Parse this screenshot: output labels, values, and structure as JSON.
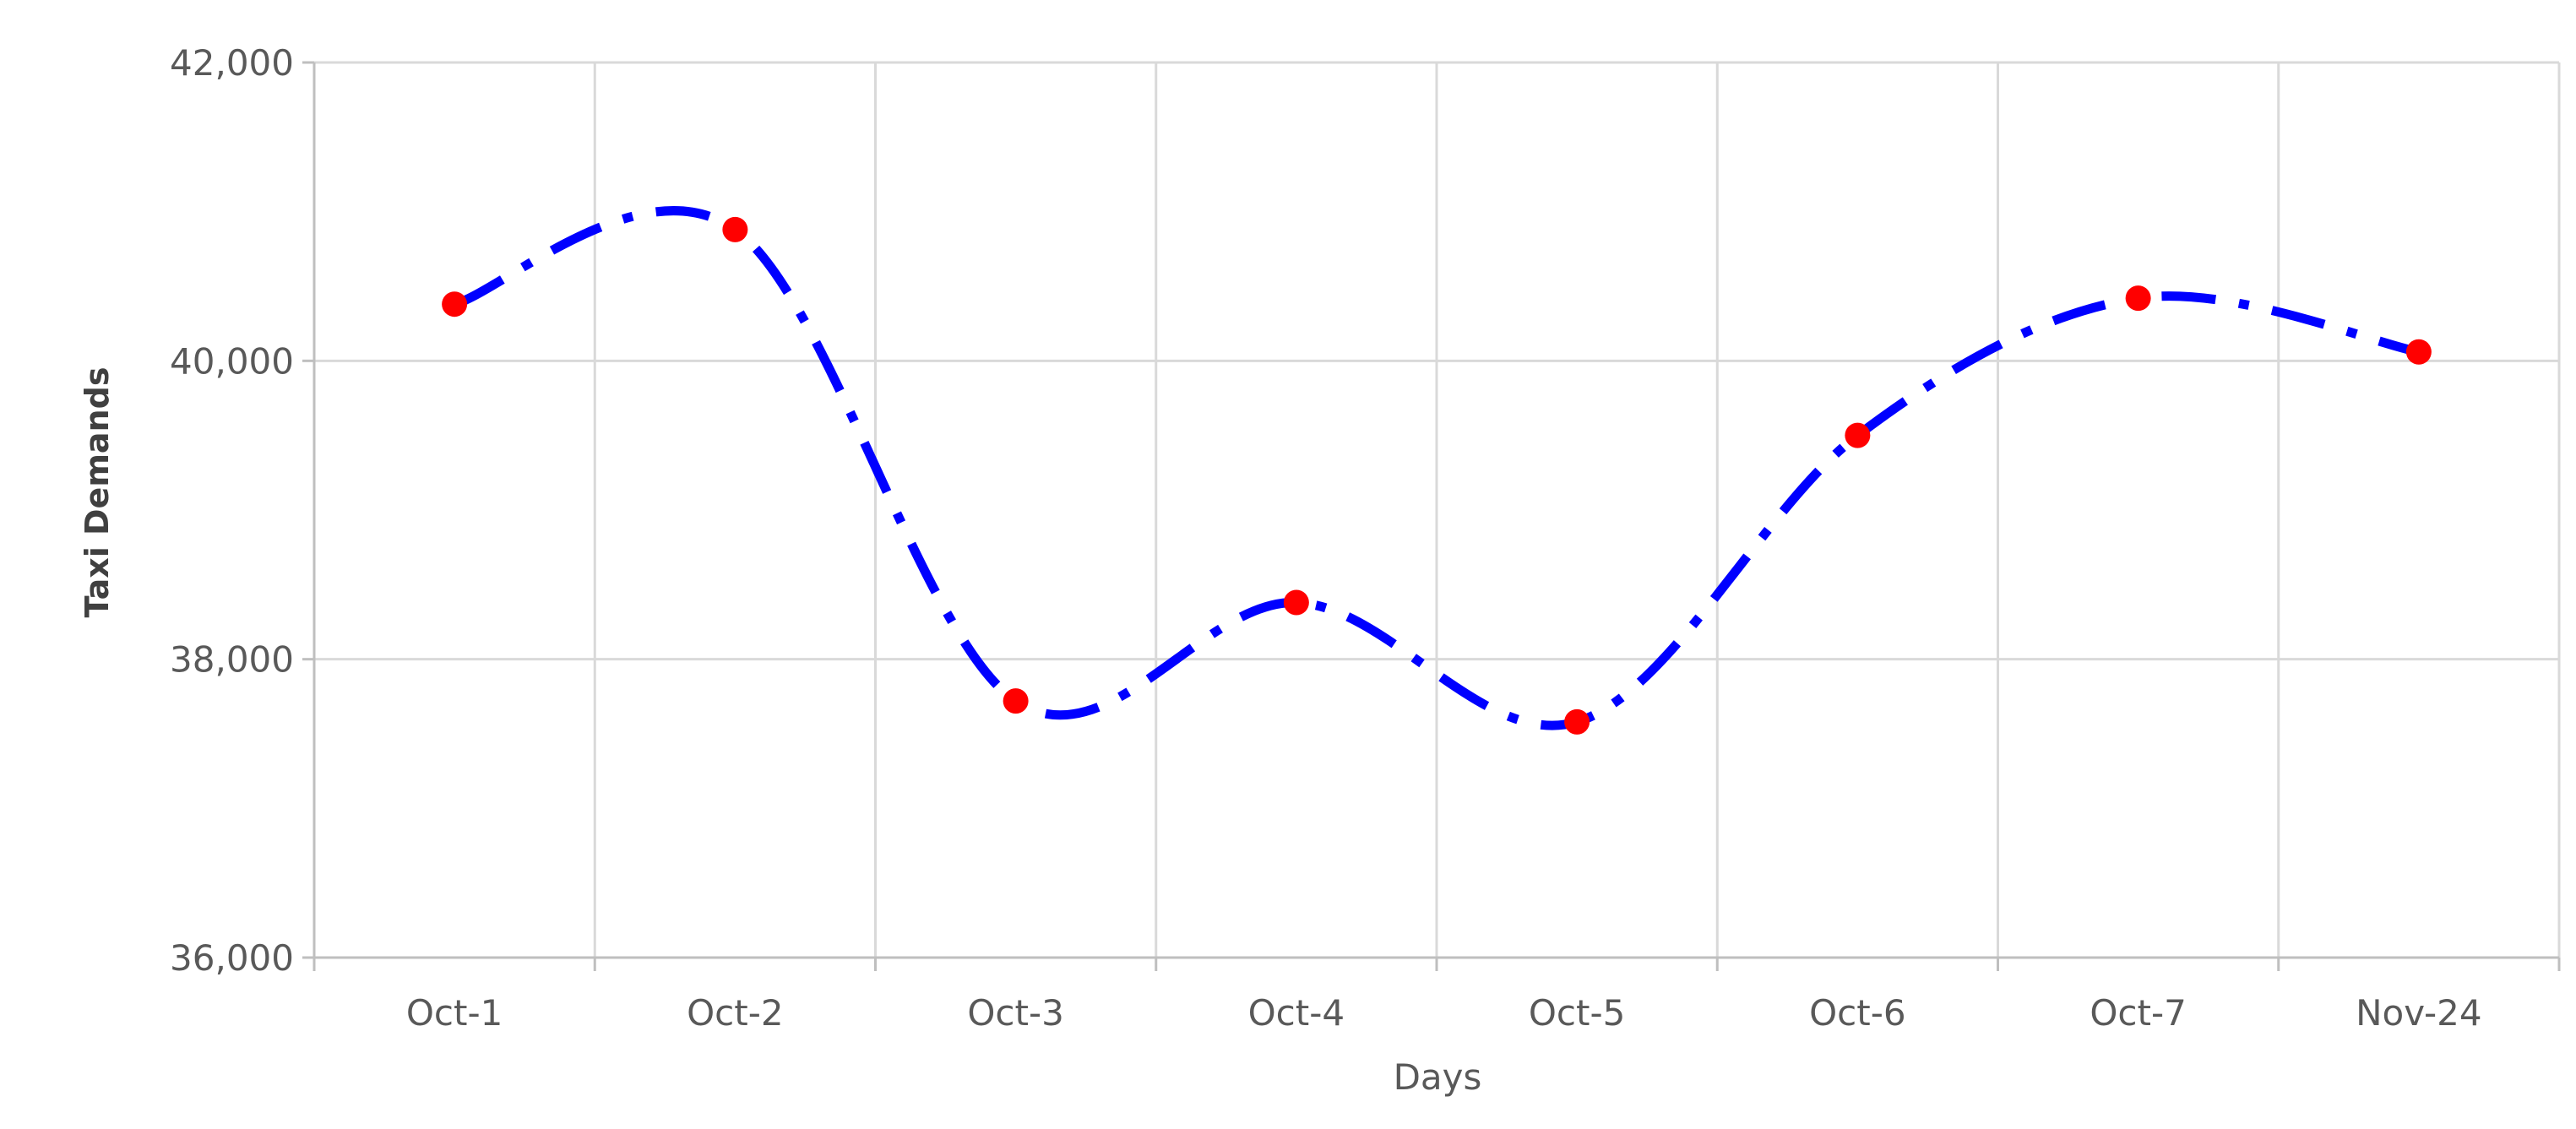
{
  "chart_data": {
    "type": "line",
    "title": "",
    "xlabel": "Days",
    "ylabel": "Taxi Demands",
    "categories": [
      "Oct-1",
      "Oct-2",
      "Oct-3",
      "Oct-4",
      "Oct-5",
      "Oct-6",
      "Oct-7",
      "Nov-24"
    ],
    "y_ticks": [
      "36,000",
      "38,000",
      "40,000",
      "42,000"
    ],
    "ylim": [
      36000,
      42000
    ],
    "grid": true,
    "legend": "none",
    "series": [
      {
        "values": [
          40380,
          40880,
          37720,
          38380,
          37580,
          39500,
          40420,
          40060
        ],
        "line_color": "#0000ff",
        "line_style": "dash-dot",
        "marker_color": "#ff0000",
        "smooth": true
      }
    ]
  }
}
